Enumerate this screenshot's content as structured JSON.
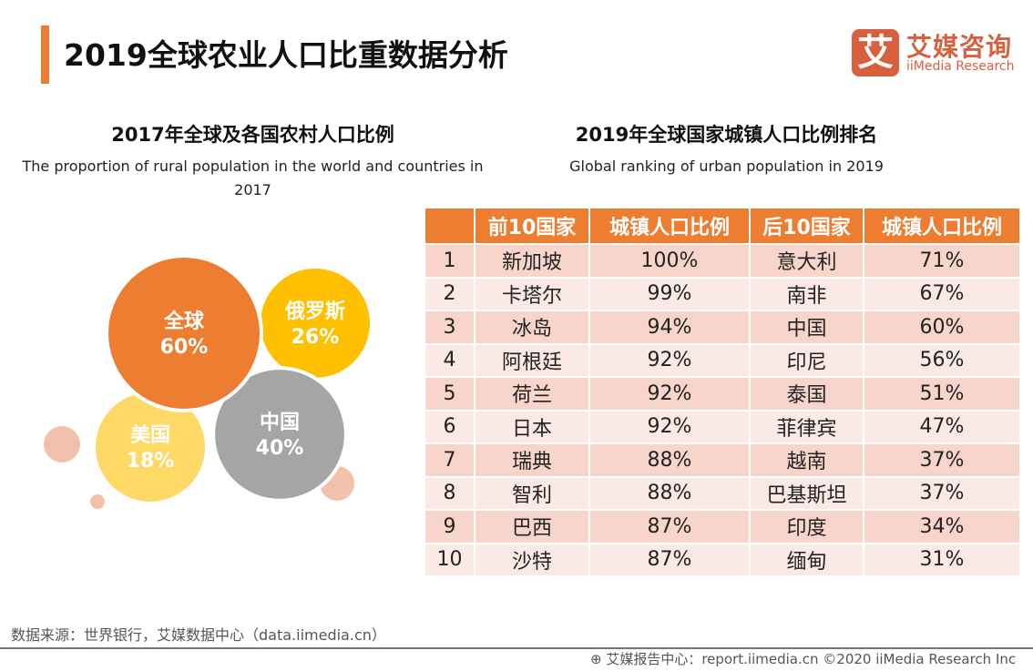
{
  "header": {
    "title": "2019全球农业人口比重数据分析",
    "logo_mark": "艾",
    "logo_cn": "艾媒咨询",
    "logo_en": "iiMedia Research"
  },
  "chart_data": {
    "type": "bubble",
    "title": "2017年全球及各国农村人口比例",
    "subtitle": "The proportion of rural population in the world and countries in 2017",
    "categories": [
      "全球",
      "俄罗斯",
      "中国",
      "美国"
    ],
    "values": [
      60,
      26,
      40,
      18
    ],
    "labels": [
      "60%",
      "26%",
      "40%",
      "18%"
    ],
    "colors": [
      "#ED7D31",
      "#FFC000",
      "#A5A5A5",
      "#FFD966"
    ],
    "decor_color": "#F4C0AE"
  },
  "table": {
    "title": "2019年全球国家城镇人口比例排名",
    "subtitle": "Global ranking of urban population in 2019",
    "headers": [
      "",
      "前10国家",
      "城镇人口比例",
      "后10国家",
      "城镇人口比例"
    ],
    "rows": [
      [
        "1",
        "新加坡",
        "100%",
        "意大利",
        "71%"
      ],
      [
        "2",
        "卡塔尔",
        "99%",
        "南非",
        "67%"
      ],
      [
        "3",
        "冰岛",
        "94%",
        "中国",
        "60%"
      ],
      [
        "4",
        "阿根廷",
        "92%",
        "印尼",
        "56%"
      ],
      [
        "5",
        "荷兰",
        "92%",
        "泰国",
        "51%"
      ],
      [
        "6",
        "日本",
        "92%",
        "菲律宾",
        "47%"
      ],
      [
        "7",
        "瑞典",
        "88%",
        "越南",
        "37%"
      ],
      [
        "8",
        "智利",
        "88%",
        "巴基斯坦",
        "37%"
      ],
      [
        "9",
        "巴西",
        "87%",
        "印度",
        "34%"
      ],
      [
        "10",
        "沙特",
        "87%",
        "缅甸",
        "31%"
      ]
    ]
  },
  "source": "数据来源：世界银行，艾媒数据中心（data.iimedia.cn）",
  "footer": "艾媒报告中心：report.iimedia.cn   ©2020  iiMedia Research  Inc"
}
